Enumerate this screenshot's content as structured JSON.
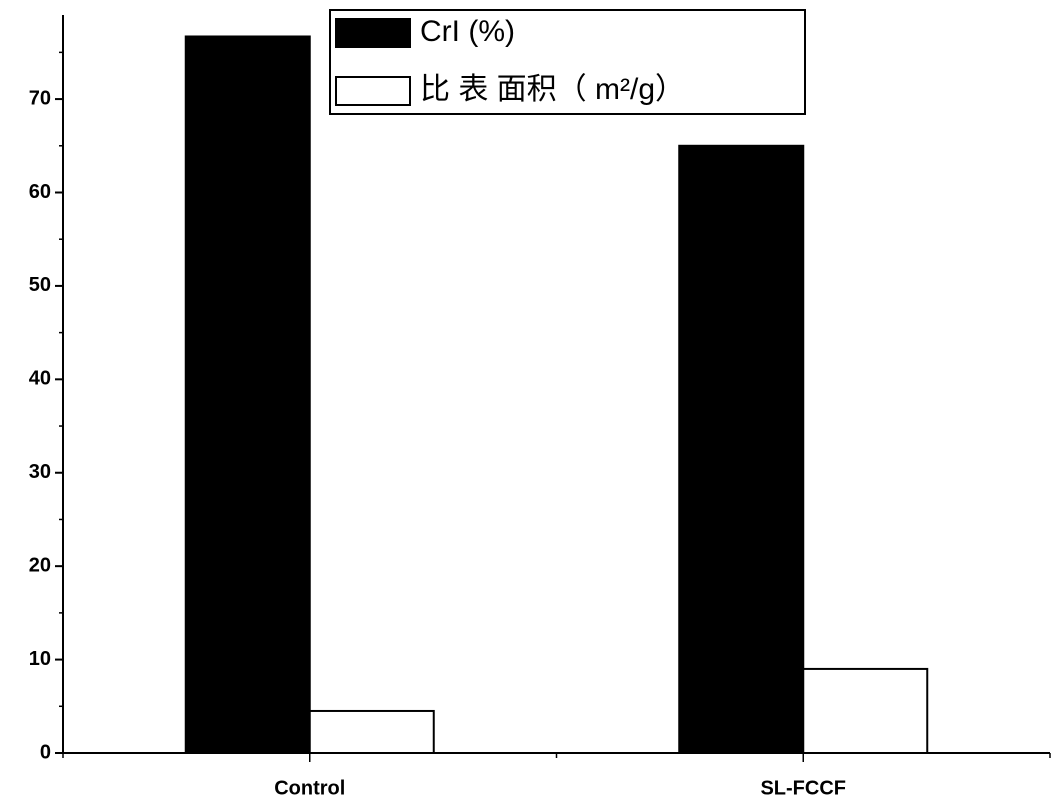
{
  "chart_data": {
    "type": "bar",
    "categories": [
      "Control",
      "SL-FCCF"
    ],
    "series": [
      {
        "name": "CrI (%)",
        "color": "#000000",
        "values": [
          76.7,
          65.0
        ]
      },
      {
        "name": "比 表 面积（ m²/g）",
        "color": "#ffffff",
        "values": [
          4.5,
          9.0
        ]
      }
    ],
    "ylim": [
      0,
      79
    ],
    "yticks": [
      0,
      10,
      20,
      30,
      40,
      50,
      60,
      70
    ],
    "legend": "top"
  }
}
